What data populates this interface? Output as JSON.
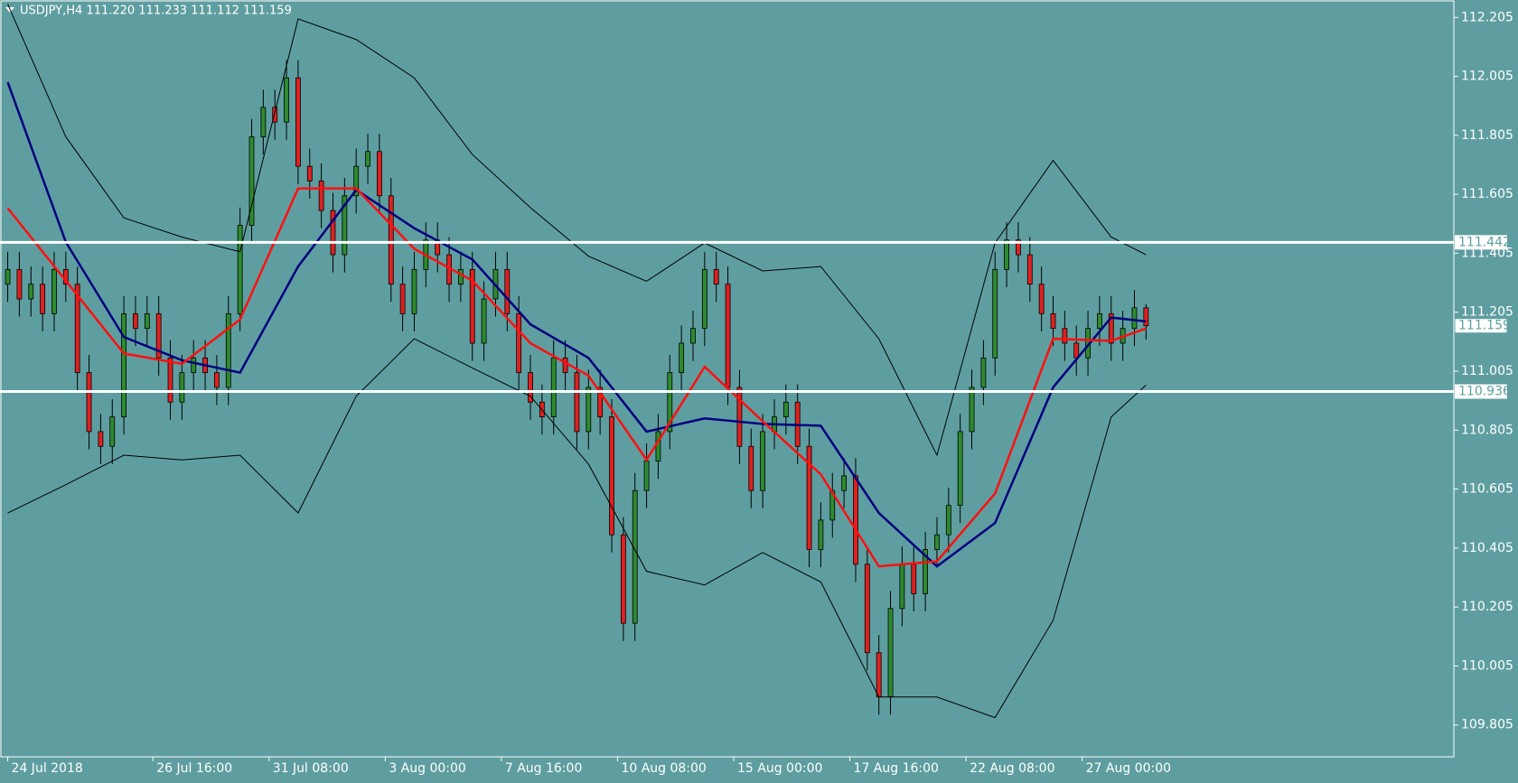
{
  "chart_data": {
    "type": "candlestick",
    "title": "USDJPY,H4  111.220 111.233 111.112 111.159",
    "x": [
      0,
      2,
      4,
      6,
      8,
      10,
      12,
      14,
      16,
      18,
      20,
      22,
      24,
      26,
      28,
      30,
      32,
      34,
      36,
      38,
      40,
      42,
      44,
      46,
      48,
      50,
      52,
      54,
      56,
      58,
      60,
      62,
      64,
      66,
      68,
      70,
      72,
      74,
      76,
      78,
      80,
      82,
      84,
      86,
      88,
      90,
      92,
      94,
      96,
      98,
      100,
      102,
      104,
      106,
      108,
      110,
      112,
      114,
      116,
      118,
      120,
      122,
      124,
      126,
      128,
      130,
      132,
      134,
      136,
      138,
      140,
      142,
      144,
      146,
      148,
      150,
      152,
      154,
      156,
      158,
      160,
      162,
      164,
      166,
      168,
      170,
      172,
      174,
      176,
      178,
      180,
      182,
      184,
      186,
      188,
      190,
      192,
      194,
      196
    ],
    "candles": [
      [
        111.3,
        111.41,
        111.24,
        111.35
      ],
      [
        111.35,
        111.41,
        111.19,
        111.25
      ],
      [
        111.25,
        111.36,
        111.19,
        111.3
      ],
      [
        111.3,
        111.36,
        111.14,
        111.2
      ],
      [
        111.2,
        111.41,
        111.14,
        111.35
      ],
      [
        111.35,
        111.41,
        111.24,
        111.3
      ],
      [
        111.3,
        111.36,
        110.94,
        111.0
      ],
      [
        111.0,
        111.06,
        110.74,
        110.8
      ],
      [
        110.8,
        110.86,
        110.69,
        110.75
      ],
      [
        110.75,
        110.91,
        110.69,
        110.85
      ],
      [
        110.85,
        111.26,
        110.79,
        111.2
      ],
      [
        111.2,
        111.26,
        111.09,
        111.15
      ],
      [
        111.15,
        111.26,
        111.09,
        111.2
      ],
      [
        111.2,
        111.26,
        110.99,
        111.05
      ],
      [
        111.05,
        111.11,
        110.84,
        110.9
      ],
      [
        110.9,
        111.06,
        110.84,
        111.0
      ],
      [
        111.0,
        111.11,
        110.94,
        111.05
      ],
      [
        111.05,
        111.11,
        110.94,
        111.0
      ],
      [
        111.0,
        111.06,
        110.89,
        110.95
      ],
      [
        110.95,
        111.26,
        110.89,
        111.2
      ],
      [
        111.2,
        111.56,
        111.14,
        111.5
      ],
      [
        111.5,
        111.86,
        111.44,
        111.8
      ],
      [
        111.8,
        111.96,
        111.74,
        111.9
      ],
      [
        111.9,
        111.96,
        111.79,
        111.85
      ],
      [
        111.85,
        112.06,
        111.79,
        112.0
      ],
      [
        112.0,
        112.06,
        111.64,
        111.7
      ],
      [
        111.7,
        111.76,
        111.59,
        111.65
      ],
      [
        111.65,
        111.71,
        111.49,
        111.55
      ],
      [
        111.55,
        111.61,
        111.34,
        111.4
      ],
      [
        111.4,
        111.66,
        111.34,
        111.6
      ],
      [
        111.6,
        111.76,
        111.54,
        111.7
      ],
      [
        111.7,
        111.81,
        111.64,
        111.75
      ],
      [
        111.75,
        111.81,
        111.54,
        111.6
      ],
      [
        111.6,
        111.66,
        111.24,
        111.3
      ],
      [
        111.3,
        111.36,
        111.14,
        111.2
      ],
      [
        111.2,
        111.41,
        111.14,
        111.35
      ],
      [
        111.35,
        111.51,
        111.29,
        111.45
      ],
      [
        111.45,
        111.51,
        111.34,
        111.4
      ],
      [
        111.4,
        111.46,
        111.24,
        111.3
      ],
      [
        111.3,
        111.41,
        111.24,
        111.35
      ],
      [
        111.35,
        111.41,
        111.04,
        111.1
      ],
      [
        111.1,
        111.31,
        111.04,
        111.25
      ],
      [
        111.25,
        111.41,
        111.19,
        111.35
      ],
      [
        111.35,
        111.41,
        111.14,
        111.2
      ],
      [
        111.2,
        111.26,
        110.94,
        111.0
      ],
      [
        111.0,
        111.06,
        110.84,
        110.9
      ],
      [
        110.9,
        110.96,
        110.79,
        110.85
      ],
      [
        110.85,
        111.11,
        110.79,
        111.05
      ],
      [
        111.05,
        111.11,
        110.94,
        111.0
      ],
      [
        111.0,
        111.06,
        110.74,
        110.8
      ],
      [
        110.8,
        111.01,
        110.74,
        110.95
      ],
      [
        110.95,
        111.01,
        110.79,
        110.85
      ],
      [
        110.85,
        110.91,
        110.39,
        110.45
      ],
      [
        110.45,
        110.51,
        110.09,
        110.15
      ],
      [
        110.15,
        110.66,
        110.09,
        110.6
      ],
      [
        110.6,
        110.76,
        110.54,
        110.7
      ],
      [
        110.7,
        110.86,
        110.64,
        110.8
      ],
      [
        110.8,
        111.06,
        110.74,
        111.0
      ],
      [
        111.0,
        111.16,
        110.94,
        111.1
      ],
      [
        111.1,
        111.21,
        111.04,
        111.15
      ],
      [
        111.15,
        111.41,
        111.09,
        111.35
      ],
      [
        111.35,
        111.41,
        111.24,
        111.3
      ],
      [
        111.3,
        111.36,
        110.89,
        110.95
      ],
      [
        110.95,
        111.01,
        110.69,
        110.75
      ],
      [
        110.75,
        110.81,
        110.54,
        110.6
      ],
      [
        110.6,
        110.86,
        110.54,
        110.8
      ],
      [
        110.8,
        110.91,
        110.74,
        110.85
      ],
      [
        110.85,
        110.96,
        110.79,
        110.9
      ],
      [
        110.9,
        110.96,
        110.69,
        110.75
      ],
      [
        110.75,
        110.81,
        110.34,
        110.4
      ],
      [
        110.4,
        110.56,
        110.34,
        110.5
      ],
      [
        110.5,
        110.66,
        110.44,
        110.6
      ],
      [
        110.6,
        110.71,
        110.54,
        110.65
      ],
      [
        110.65,
        110.71,
        110.29,
        110.35
      ],
      [
        110.35,
        110.41,
        109.99,
        110.05
      ],
      [
        110.05,
        110.11,
        109.84,
        109.9
      ],
      [
        109.9,
        110.26,
        109.84,
        110.2
      ],
      [
        110.2,
        110.41,
        110.14,
        110.35
      ],
      [
        110.35,
        110.41,
        110.19,
        110.25
      ],
      [
        110.25,
        110.46,
        110.19,
        110.4
      ],
      [
        110.4,
        110.51,
        110.34,
        110.45
      ],
      [
        110.45,
        110.61,
        110.39,
        110.55
      ],
      [
        110.55,
        110.86,
        110.49,
        110.8
      ],
      [
        110.8,
        111.01,
        110.74,
        110.95
      ],
      [
        110.95,
        111.11,
        110.89,
        111.05
      ],
      [
        111.05,
        111.41,
        110.99,
        111.35
      ],
      [
        111.35,
        111.51,
        111.29,
        111.45
      ],
      [
        111.45,
        111.51,
        111.34,
        111.4
      ],
      [
        111.4,
        111.46,
        111.24,
        111.3
      ],
      [
        111.3,
        111.36,
        111.14,
        111.2
      ],
      [
        111.2,
        111.26,
        111.09,
        111.15
      ],
      [
        111.15,
        111.21,
        111.04,
        111.1
      ],
      [
        111.1,
        111.16,
        110.99,
        111.05
      ],
      [
        111.05,
        111.21,
        110.99,
        111.15
      ],
      [
        111.15,
        111.26,
        111.09,
        111.2
      ],
      [
        111.2,
        111.26,
        111.04,
        111.1
      ],
      [
        111.1,
        111.21,
        111.04,
        111.15
      ],
      [
        111.15,
        111.28,
        111.09,
        111.22
      ],
      [
        111.22,
        111.233,
        111.112,
        111.159
      ]
    ],
    "up_color": "#2e8b2e",
    "down_color": "#e02020",
    "line_x": [
      0,
      10,
      20,
      30,
      40,
      50,
      60,
      70,
      80,
      90,
      100,
      110,
      120,
      130,
      140,
      150,
      160,
      170,
      180,
      190,
      196
    ],
    "lines": [
      {
        "color": "#000000",
        "width": 1,
        "values": [
          112.25,
          111.8,
          111.525,
          111.46,
          111.41,
          112.2,
          112.13,
          112.0,
          111.74,
          111.56,
          111.395,
          111.31,
          111.44,
          111.345,
          111.36,
          111.115,
          110.72,
          111.44,
          111.72,
          111.46,
          111.4
        ]
      },
      {
        "color": "#000000",
        "width": 1,
        "values": [
          110.524,
          110.62,
          110.72,
          110.704,
          110.72,
          110.524,
          110.92,
          111.115,
          111.016,
          110.92,
          110.69,
          110.326,
          110.28,
          110.39,
          110.29,
          109.9,
          109.9,
          109.83,
          110.16,
          110.85,
          110.958
        ]
      },
      {
        "color": "#000080",
        "width": 2.5,
        "values": [
          111.985,
          111.443,
          111.121,
          111.042,
          111.0,
          111.36,
          111.62,
          111.49,
          111.384,
          111.164,
          111.05,
          110.8,
          110.845,
          110.826,
          110.82,
          110.524,
          110.343,
          110.49,
          110.95,
          111.187,
          111.174
        ]
      },
      {
        "color": "#ff1010",
        "width": 2.5,
        "values": [
          111.558,
          111.312,
          111.065,
          111.03,
          111.18,
          111.625,
          111.625,
          111.42,
          111.312,
          111.1,
          110.99,
          110.704,
          111.02,
          110.835,
          110.655,
          110.343,
          110.36,
          110.59,
          111.115,
          111.108,
          111.15
        ]
      }
    ],
    "levels": [
      111.442,
      110.936
    ],
    "last_price": 111.159,
    "xlim": [
      -1.33,
      249
    ],
    "ylim": [
      109.697,
      112.264
    ],
    "yticks": [
      112.205,
      112.005,
      111.805,
      111.605,
      111.405,
      111.205,
      111.005,
      110.805,
      110.605,
      110.405,
      110.205,
      110.005,
      109.805
    ],
    "xticks": [
      {
        "value": 0,
        "label": "24 Jul 2018"
      },
      {
        "value": 25,
        "label": "26 Jul 16:00"
      },
      {
        "value": 45,
        "label": "31 Jul 08:00"
      },
      {
        "value": 65,
        "label": "3 Aug 00:00"
      },
      {
        "value": 85,
        "label": "7 Aug 16:00"
      },
      {
        "value": 105,
        "label": "10 Aug 08:00"
      },
      {
        "value": 125,
        "label": "15 Aug 00:00"
      },
      {
        "value": 145,
        "label": "17 Aug 16:00"
      },
      {
        "value": 165,
        "label": "22 Aug 08:00"
      },
      {
        "value": 185,
        "label": "27 Aug 00:00"
      }
    ]
  }
}
